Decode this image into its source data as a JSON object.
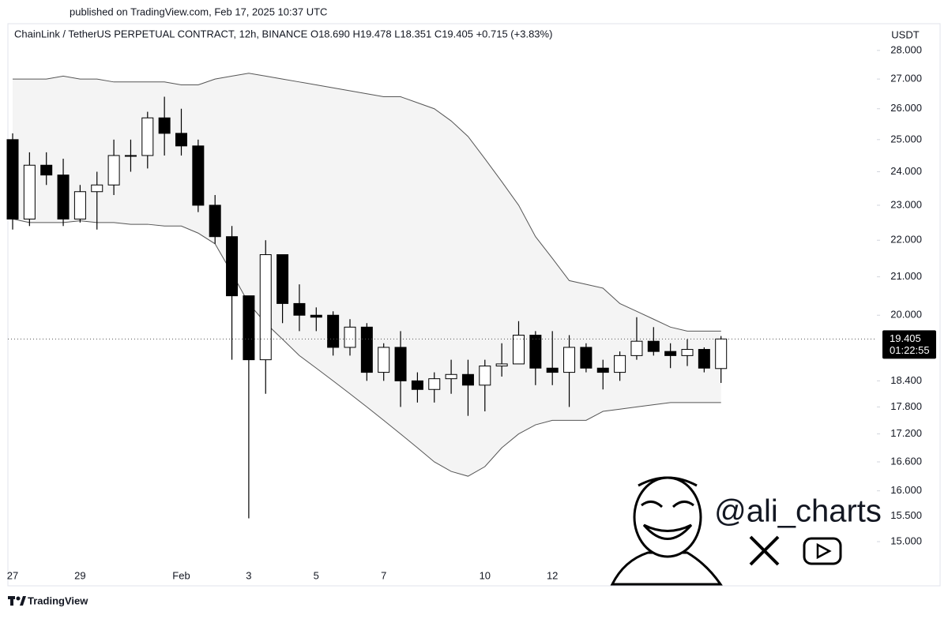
{
  "published": "published on TradingView.com, Feb 17, 2025 10:37 UTC",
  "chart_data": {
    "type": "candlestick",
    "title": "ChainLink / TetherUS PERPETUAL CONTRACT, 12h, BINANCE  O18.690  H19.478  L18.351  C19.405  +0.715 (+3.83%)",
    "currency": "USDT",
    "categories": [
      "27",
      null,
      null,
      null,
      "29",
      null,
      null,
      null,
      null,
      null,
      "Feb",
      null,
      null,
      null,
      "3",
      null,
      null,
      null,
      "5",
      null,
      null,
      null,
      "7",
      null,
      null,
      null,
      null,
      null,
      "10",
      null,
      null,
      null,
      "12",
      null,
      null,
      null,
      null,
      null,
      null,
      null,
      null,
      null,
      null
    ],
    "open": [
      25.0,
      22.6,
      24.2,
      23.9,
      22.6,
      23.4,
      23.6,
      24.5,
      24.5,
      25.7,
      25.2,
      24.8,
      23.0,
      22.1,
      20.5,
      18.9,
      21.6,
      20.3,
      20.0,
      20.0,
      19.2,
      19.7,
      18.6,
      19.2,
      18.4,
      18.2,
      18.45,
      18.55,
      18.3,
      18.75,
      18.8,
      19.5,
      18.7,
      18.6,
      19.2,
      18.7,
      18.6,
      19.0,
      19.35,
      19.1,
      19.0,
      19.15,
      18.69
    ],
    "high": [
      25.2,
      24.6,
      24.6,
      24.4,
      23.6,
      24.0,
      25.0,
      25.0,
      25.9,
      26.4,
      26.0,
      25.0,
      23.3,
      22.4,
      20.5,
      22.0,
      21.6,
      20.8,
      20.2,
      20.1,
      19.9,
      19.8,
      19.3,
      19.6,
      18.6,
      18.6,
      18.9,
      18.9,
      18.9,
      19.3,
      19.85,
      19.6,
      19.6,
      19.5,
      19.3,
      18.9,
      19.1,
      19.95,
      19.7,
      19.3,
      19.4,
      19.2,
      19.478
    ],
    "low": [
      22.3,
      22.4,
      23.6,
      22.4,
      22.5,
      22.3,
      23.3,
      24.0,
      24.1,
      24.5,
      24.5,
      22.8,
      21.9,
      18.9,
      15.45,
      18.1,
      19.8,
      19.6,
      19.6,
      19.0,
      19.0,
      18.4,
      18.4,
      17.8,
      17.9,
      17.9,
      18.1,
      17.6,
      17.7,
      18.5,
      18.8,
      18.3,
      18.3,
      17.8,
      18.6,
      18.2,
      18.4,
      18.9,
      19.0,
      18.7,
      18.75,
      18.6,
      18.351
    ],
    "close": [
      22.6,
      24.2,
      23.9,
      22.6,
      23.4,
      23.6,
      24.5,
      24.5,
      25.7,
      25.2,
      24.8,
      23.0,
      22.1,
      20.5,
      18.9,
      21.6,
      20.3,
      20.0,
      19.95,
      19.2,
      19.7,
      18.6,
      19.2,
      18.4,
      18.2,
      18.45,
      18.55,
      18.3,
      18.75,
      18.8,
      19.5,
      18.7,
      18.6,
      19.2,
      18.7,
      18.6,
      19.0,
      19.35,
      19.1,
      19.0,
      19.15,
      18.7,
      19.405
    ],
    "upper_band": [
      27.0,
      27.0,
      27.0,
      27.1,
      27.0,
      27.0,
      26.9,
      26.9,
      26.9,
      26.9,
      26.8,
      26.8,
      27.0,
      27.1,
      27.2,
      27.1,
      27.0,
      26.9,
      26.8,
      26.7,
      26.6,
      26.5,
      26.4,
      26.4,
      26.2,
      26.0,
      25.6,
      25.1,
      24.4,
      23.7,
      23.0,
      22.1,
      21.5,
      20.9,
      20.8,
      20.7,
      20.3,
      20.1,
      19.9,
      19.7,
      19.6,
      19.6,
      19.6
    ],
    "lower_band": [
      22.6,
      22.5,
      22.5,
      22.5,
      22.55,
      22.5,
      22.5,
      22.45,
      22.45,
      22.4,
      22.4,
      22.2,
      21.9,
      21.1,
      20.3,
      19.8,
      19.4,
      19.0,
      18.7,
      18.4,
      18.1,
      17.8,
      17.5,
      17.2,
      16.9,
      16.6,
      16.4,
      16.3,
      16.5,
      16.9,
      17.2,
      17.4,
      17.5,
      17.5,
      17.5,
      17.7,
      17.75,
      17.8,
      17.85,
      17.9,
      17.9,
      17.9,
      17.9
    ],
    "up_color": "#ffffff",
    "down_color": "#000000",
    "band_fill": "#f4f4f4",
    "band_line": "#555555",
    "log_scale": true,
    "ylim": [
      14.57,
      28.25
    ],
    "yticks": [
      {
        "value": 28,
        "label": "28.000"
      },
      {
        "value": 27,
        "label": "27.000"
      },
      {
        "value": 26,
        "label": "26.000"
      },
      {
        "value": 25,
        "label": "25.000"
      },
      {
        "value": 24,
        "label": "24.000"
      },
      {
        "value": 23,
        "label": "23.000"
      },
      {
        "value": 22,
        "label": "22.000"
      },
      {
        "value": 21,
        "label": "21.000"
      },
      {
        "value": 20,
        "label": "20.000"
      },
      {
        "value": 18.4,
        "label": "18.400"
      },
      {
        "value": 17.8,
        "label": "17.800"
      },
      {
        "value": 17.2,
        "label": "17.200"
      },
      {
        "value": 16.6,
        "label": "16.600"
      },
      {
        "value": 16,
        "label": "16.000"
      },
      {
        "value": 15.5,
        "label": "15.500"
      },
      {
        "value": 15,
        "label": "15.000"
      }
    ],
    "last_price": 19.405,
    "countdown": "01:22:55"
  },
  "watermark": "@ali_charts",
  "footer": "TradingView"
}
